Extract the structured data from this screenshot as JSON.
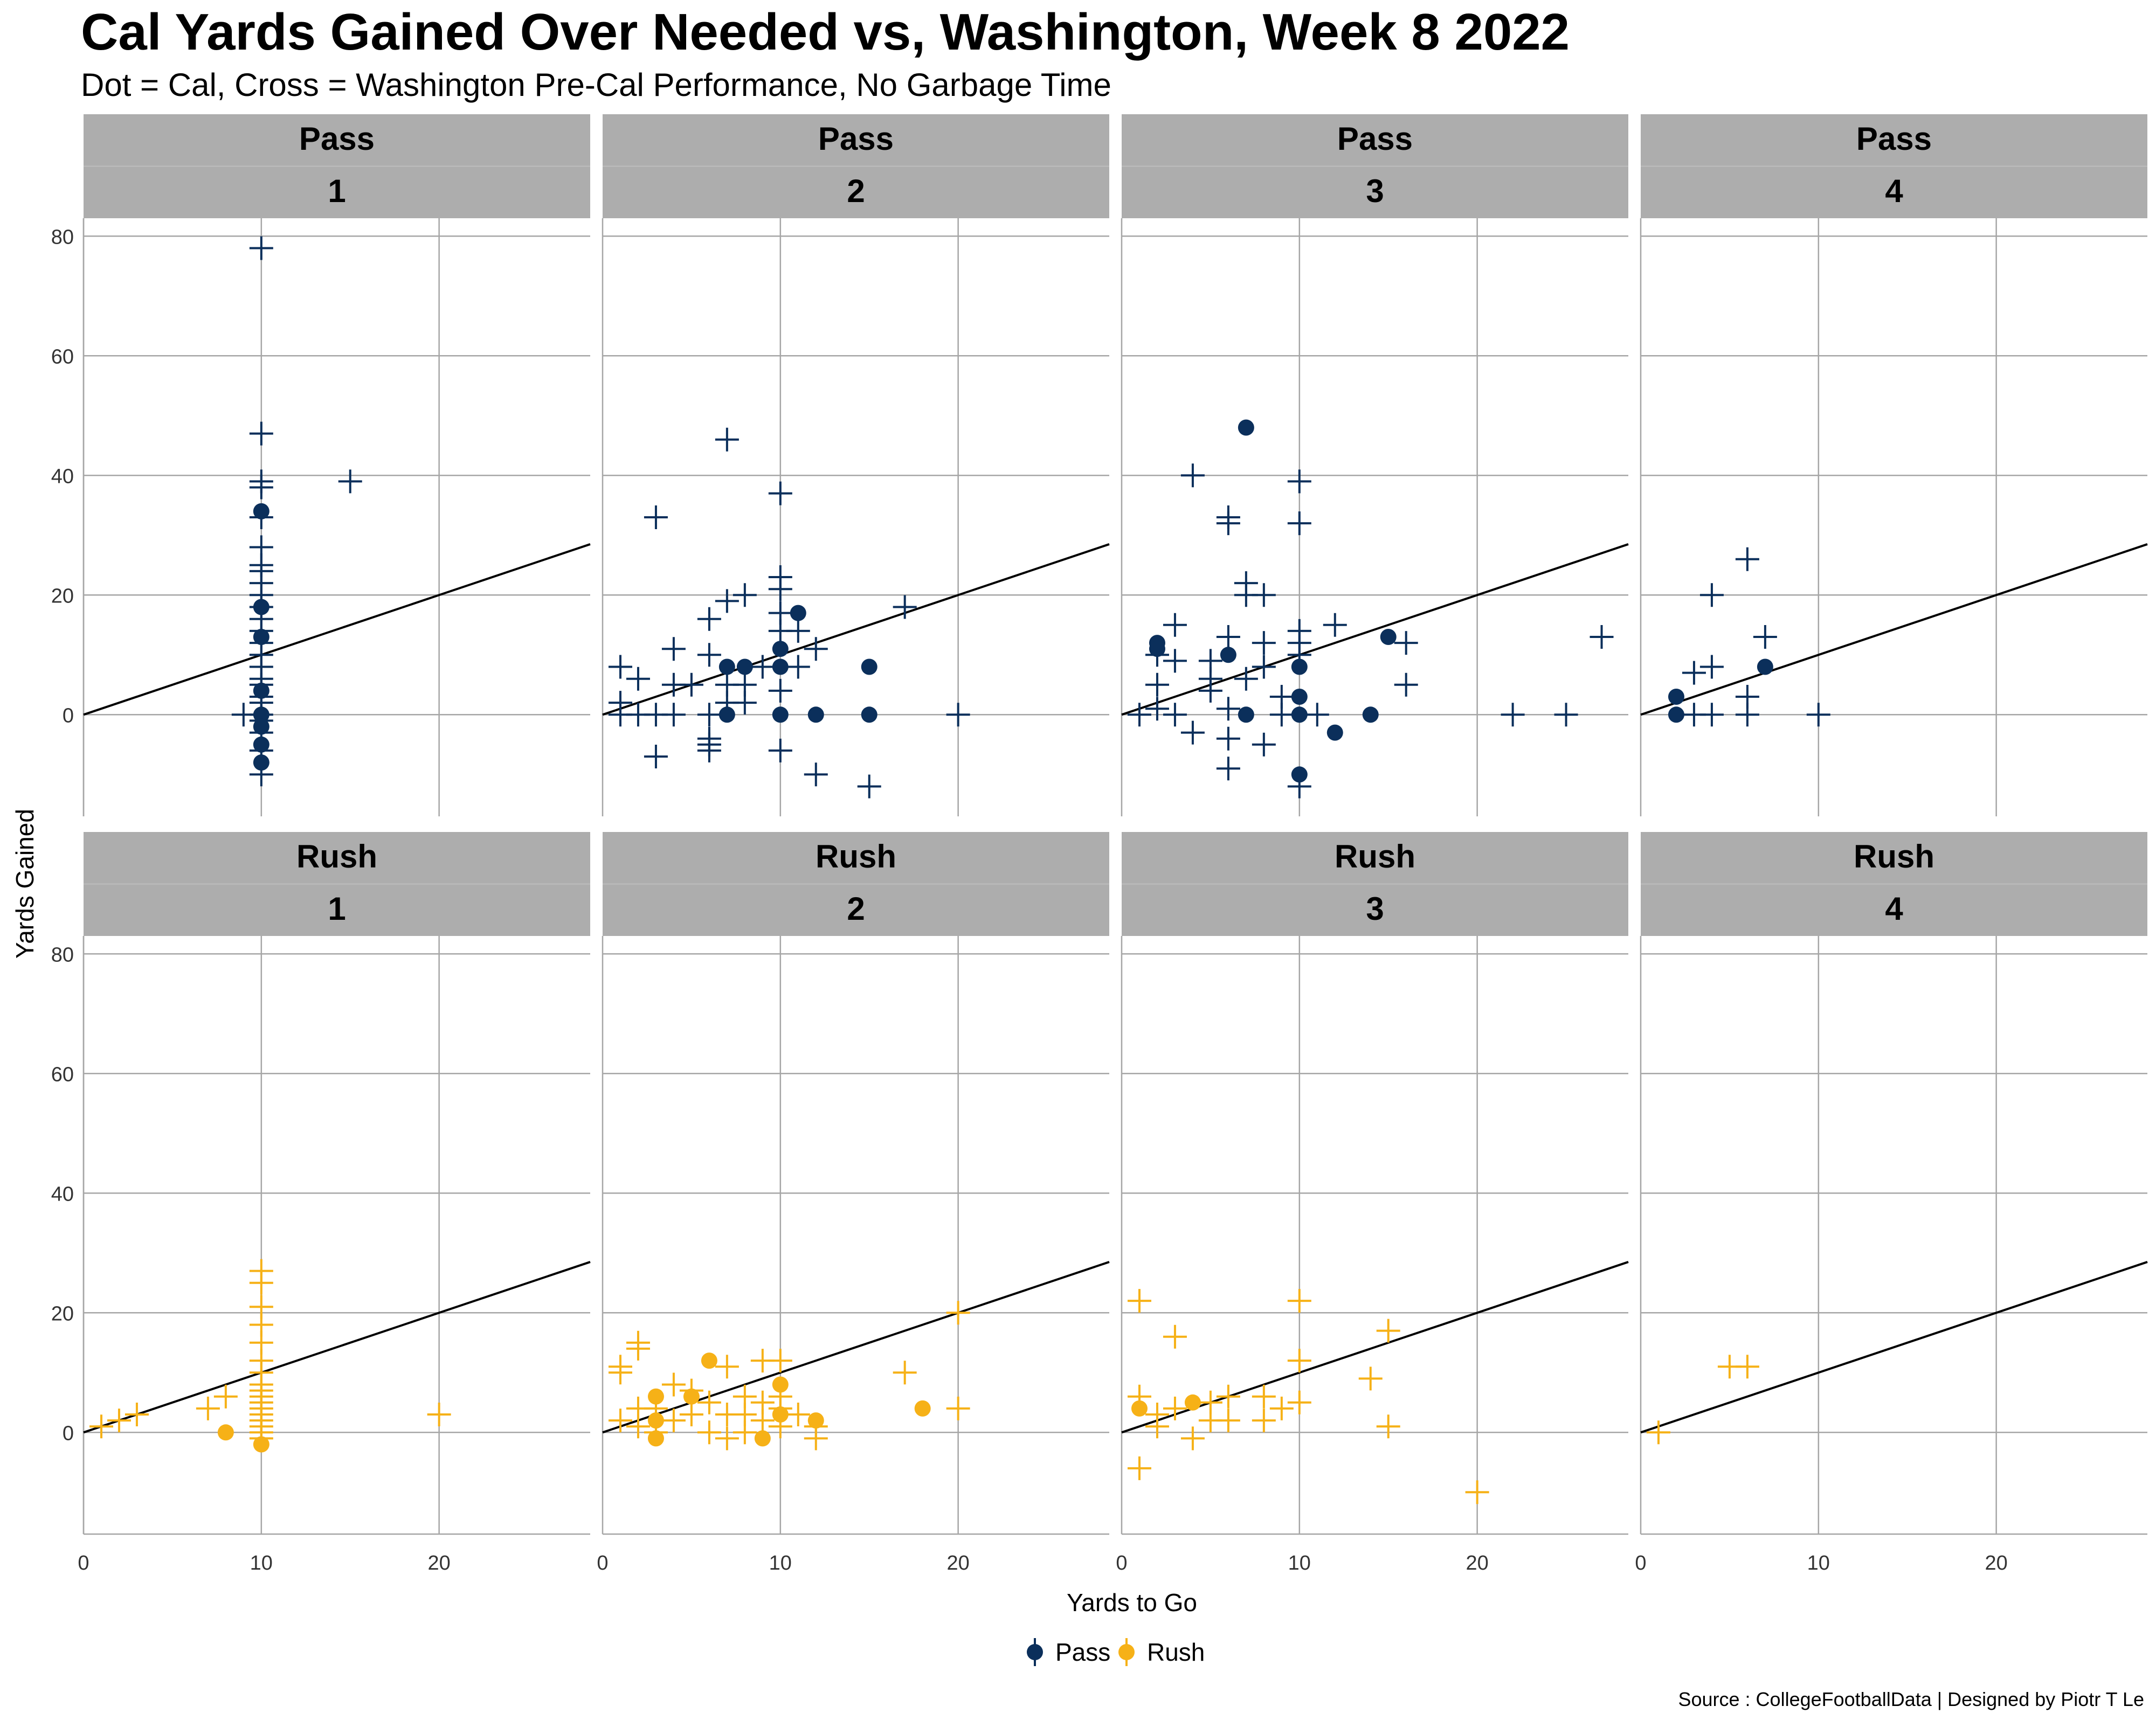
{
  "title": "Cal Yards Gained Over Needed vs, Washington, Week 8 2022",
  "subtitle": "Dot = Cal, Cross = Washington Pre-Cal Performance, No Garbage Time",
  "caption": "Source : CollegeFootballData | Designed by Piotr T Le",
  "colors": {
    "pass": "#0b2f5b",
    "rush": "#f6b117",
    "strip": "#adadad",
    "grid": "#a6a6a6",
    "refline": "#000000"
  },
  "chart_data": {
    "type": "scatter",
    "xlabel": "Yards to Go",
    "ylabel": "Yards Gained",
    "xlim": [
      0,
      28.5
    ],
    "ylim": [
      -17,
      83
    ],
    "x_ticks": [
      0,
      10,
      20
    ],
    "y_ticks": [
      0,
      20,
      40,
      60,
      80
    ],
    "reference_line": {
      "slope": 1,
      "intercept": 0
    },
    "grid": true,
    "legend": {
      "position": "bottom",
      "entries": [
        {
          "label": "Pass",
          "color": "#0b2f5b"
        },
        {
          "label": "Rush",
          "color": "#f6b117"
        }
      ]
    },
    "panels": [
      {
        "play_type": "Pass",
        "down": "1",
        "cal": [
          [
            10,
            34
          ],
          [
            10,
            18
          ],
          [
            10,
            13
          ],
          [
            10,
            4
          ],
          [
            10,
            0
          ],
          [
            10,
            -2
          ],
          [
            10,
            -5
          ],
          [
            10,
            -8
          ]
        ],
        "washington": [
          [
            10,
            78
          ],
          [
            10,
            47
          ],
          [
            10,
            39
          ],
          [
            10,
            38
          ],
          [
            10,
            33
          ],
          [
            10,
            28
          ],
          [
            10,
            25
          ],
          [
            10,
            24
          ],
          [
            10,
            22
          ],
          [
            10,
            20
          ],
          [
            10,
            18
          ],
          [
            10,
            16
          ],
          [
            10,
            14
          ],
          [
            10,
            12
          ],
          [
            10,
            10
          ],
          [
            10,
            8
          ],
          [
            10,
            6
          ],
          [
            10,
            5
          ],
          [
            10,
            3
          ],
          [
            10,
            2
          ],
          [
            10,
            0
          ],
          [
            10,
            -1
          ],
          [
            10,
            -3
          ],
          [
            10,
            -6
          ],
          [
            10,
            -10
          ],
          [
            15,
            39
          ],
          [
            9,
            0
          ]
        ]
      },
      {
        "play_type": "Pass",
        "down": "2",
        "cal": [
          [
            7,
            8
          ],
          [
            8,
            8
          ],
          [
            10,
            11
          ],
          [
            10,
            8
          ],
          [
            11,
            17
          ],
          [
            7,
            0
          ],
          [
            10,
            0
          ],
          [
            12,
            0
          ],
          [
            15,
            8
          ],
          [
            15,
            0
          ]
        ],
        "washington": [
          [
            1,
            8
          ],
          [
            1,
            2
          ],
          [
            1,
            0
          ],
          [
            2,
            6
          ],
          [
            2,
            0
          ],
          [
            3,
            33
          ],
          [
            3,
            0
          ],
          [
            3,
            -7
          ],
          [
            4,
            11
          ],
          [
            4,
            5
          ],
          [
            4,
            0
          ],
          [
            5,
            5
          ],
          [
            6,
            16
          ],
          [
            6,
            10
          ],
          [
            6,
            0
          ],
          [
            6,
            -4
          ],
          [
            6,
            -5
          ],
          [
            6,
            -6
          ],
          [
            7,
            46
          ],
          [
            7,
            19
          ],
          [
            7,
            5
          ],
          [
            7,
            2
          ],
          [
            8,
            20
          ],
          [
            8,
            5
          ],
          [
            8,
            2
          ],
          [
            9,
            8
          ],
          [
            10,
            37
          ],
          [
            10,
            23
          ],
          [
            10,
            21
          ],
          [
            10,
            17
          ],
          [
            10,
            14
          ],
          [
            10,
            4
          ],
          [
            10,
            -6
          ],
          [
            11,
            14
          ],
          [
            11,
            8
          ],
          [
            12,
            11
          ],
          [
            12,
            -10
          ],
          [
            15,
            -12
          ],
          [
            17,
            18
          ],
          [
            20,
            0
          ]
        ]
      },
      {
        "play_type": "Pass",
        "down": "3",
        "cal": [
          [
            7,
            48
          ],
          [
            2,
            12
          ],
          [
            2,
            11
          ],
          [
            6,
            10
          ],
          [
            15,
            13
          ],
          [
            10,
            8
          ],
          [
            10,
            3
          ],
          [
            7,
            0
          ],
          [
            10,
            0
          ],
          [
            14,
            0
          ],
          [
            12,
            -3
          ],
          [
            10,
            -10
          ]
        ],
        "washington": [
          [
            1,
            0
          ],
          [
            2,
            10
          ],
          [
            2,
            5
          ],
          [
            2,
            1
          ],
          [
            3,
            15
          ],
          [
            3,
            9
          ],
          [
            3,
            0
          ],
          [
            4,
            40
          ],
          [
            4,
            -3
          ],
          [
            5,
            9
          ],
          [
            5,
            6
          ],
          [
            5,
            4
          ],
          [
            6,
            33
          ],
          [
            6,
            32
          ],
          [
            6,
            13
          ],
          [
            6,
            1
          ],
          [
            6,
            -4
          ],
          [
            6,
            -9
          ],
          [
            7,
            22
          ],
          [
            7,
            20
          ],
          [
            7,
            6
          ],
          [
            8,
            20
          ],
          [
            8,
            12
          ],
          [
            8,
            8
          ],
          [
            8,
            -5
          ],
          [
            9,
            3
          ],
          [
            9,
            0
          ],
          [
            10,
            39
          ],
          [
            10,
            32
          ],
          [
            10,
            14
          ],
          [
            10,
            12
          ],
          [
            10,
            10
          ],
          [
            10,
            -12
          ],
          [
            11,
            0
          ],
          [
            12,
            15
          ],
          [
            16,
            12
          ],
          [
            16,
            5
          ],
          [
            22,
            0
          ],
          [
            25,
            0
          ],
          [
            27,
            13
          ]
        ]
      },
      {
        "play_type": "Pass",
        "down": "4",
        "cal": [
          [
            2,
            3
          ],
          [
            2,
            0
          ],
          [
            7,
            8
          ]
        ],
        "washington": [
          [
            3,
            7
          ],
          [
            3,
            0
          ],
          [
            4,
            20
          ],
          [
            4,
            8
          ],
          [
            4,
            0
          ],
          [
            6,
            26
          ],
          [
            6,
            3
          ],
          [
            6,
            0
          ],
          [
            7,
            13
          ],
          [
            10,
            0
          ]
        ]
      },
      {
        "play_type": "Rush",
        "down": "1",
        "cal": [
          [
            8,
            0
          ],
          [
            10,
            -2
          ]
        ],
        "washington": [
          [
            1,
            1
          ],
          [
            2,
            2
          ],
          [
            3,
            3
          ],
          [
            7,
            4
          ],
          [
            8,
            6
          ],
          [
            10,
            27
          ],
          [
            10,
            25
          ],
          [
            10,
            21
          ],
          [
            10,
            18
          ],
          [
            10,
            15
          ],
          [
            10,
            12
          ],
          [
            10,
            10
          ],
          [
            10,
            8
          ],
          [
            10,
            7
          ],
          [
            10,
            6
          ],
          [
            10,
            5
          ],
          [
            10,
            4
          ],
          [
            10,
            3
          ],
          [
            10,
            2
          ],
          [
            10,
            1
          ],
          [
            10,
            0
          ],
          [
            10,
            -1
          ],
          [
            20,
            3
          ]
        ]
      },
      {
        "play_type": "Rush",
        "down": "2",
        "cal": [
          [
            6,
            12
          ],
          [
            3,
            6
          ],
          [
            5,
            6
          ],
          [
            3,
            2
          ],
          [
            10,
            8
          ],
          [
            10,
            3
          ],
          [
            12,
            2
          ],
          [
            18,
            4
          ],
          [
            3,
            -1
          ],
          [
            9,
            -1
          ]
        ],
        "washington": [
          [
            1,
            11
          ],
          [
            1,
            10
          ],
          [
            1,
            2
          ],
          [
            2,
            15
          ],
          [
            2,
            14
          ],
          [
            2,
            4
          ],
          [
            2,
            1
          ],
          [
            3,
            4
          ],
          [
            3,
            0
          ],
          [
            4,
            8
          ],
          [
            4,
            2
          ],
          [
            5,
            7
          ],
          [
            5,
            3
          ],
          [
            6,
            5
          ],
          [
            6,
            0
          ],
          [
            7,
            11
          ],
          [
            7,
            3
          ],
          [
            7,
            -1
          ],
          [
            8,
            6
          ],
          [
            8,
            3
          ],
          [
            8,
            0
          ],
          [
            9,
            12
          ],
          [
            9,
            5
          ],
          [
            9,
            2
          ],
          [
            10,
            12
          ],
          [
            10,
            6
          ],
          [
            10,
            4
          ],
          [
            10,
            1
          ],
          [
            11,
            3
          ],
          [
            12,
            1
          ],
          [
            12,
            -1
          ],
          [
            17,
            10
          ],
          [
            20,
            20
          ],
          [
            20,
            4
          ]
        ]
      },
      {
        "play_type": "Rush",
        "down": "3",
        "cal": [
          [
            1,
            4
          ],
          [
            4,
            5
          ]
        ],
        "washington": [
          [
            1,
            22
          ],
          [
            1,
            6
          ],
          [
            1,
            -6
          ],
          [
            2,
            3
          ],
          [
            2,
            1
          ],
          [
            3,
            16
          ],
          [
            3,
            4
          ],
          [
            4,
            -1
          ],
          [
            5,
            5
          ],
          [
            5,
            2
          ],
          [
            6,
            6
          ],
          [
            6,
            2
          ],
          [
            8,
            6
          ],
          [
            8,
            2
          ],
          [
            9,
            4
          ],
          [
            10,
            22
          ],
          [
            10,
            12
          ],
          [
            10,
            5
          ],
          [
            14,
            9
          ],
          [
            15,
            17
          ],
          [
            15,
            1
          ],
          [
            20,
            -10
          ]
        ]
      },
      {
        "play_type": "Rush",
        "down": "4",
        "cal": [],
        "washington": [
          [
            1,
            0
          ],
          [
            5,
            11
          ],
          [
            6,
            11
          ]
        ]
      }
    ]
  }
}
